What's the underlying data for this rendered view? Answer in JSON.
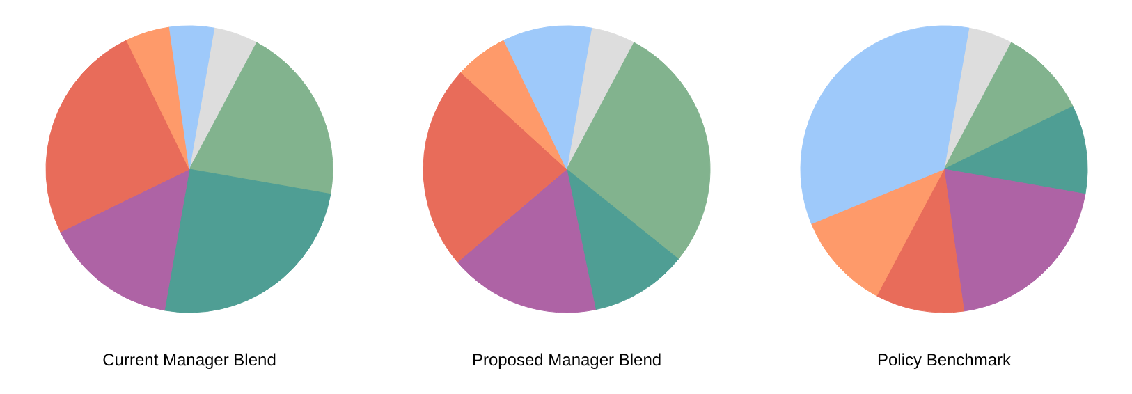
{
  "chart_data": [
    {
      "type": "pie",
      "title": "Current Manager Blend",
      "categories": [
        null,
        null,
        null,
        null,
        null,
        null,
        null
      ],
      "values": [
        5,
        20,
        25,
        15,
        25,
        5,
        5
      ],
      "colors": [
        "#dddddd",
        "#82b38e",
        "#4f9e94",
        "#ae63a5",
        "#e86c5a",
        "#fe9a6a",
        "#9ec9fa"
      ]
    },
    {
      "type": "pie",
      "title": "Proposed Manager Blend",
      "categories": [
        null,
        null,
        null,
        null,
        null,
        null,
        null
      ],
      "values": [
        5,
        28,
        11,
        17,
        23,
        6,
        10
      ],
      "colors": [
        "#dddddd",
        "#82b38e",
        "#4f9e94",
        "#ae63a5",
        "#e86c5a",
        "#fe9a6a",
        "#9ec9fa"
      ]
    },
    {
      "type": "pie",
      "title": "Policy Benchmark",
      "categories": [
        null,
        null,
        null,
        null,
        null,
        null,
        null
      ],
      "values": [
        5,
        10,
        10,
        20,
        10,
        11,
        34
      ],
      "colors": [
        "#dddddd",
        "#82b38e",
        "#4f9e94",
        "#ae63a5",
        "#e86c5a",
        "#fe9a6a",
        "#9ec9fa"
      ]
    }
  ]
}
